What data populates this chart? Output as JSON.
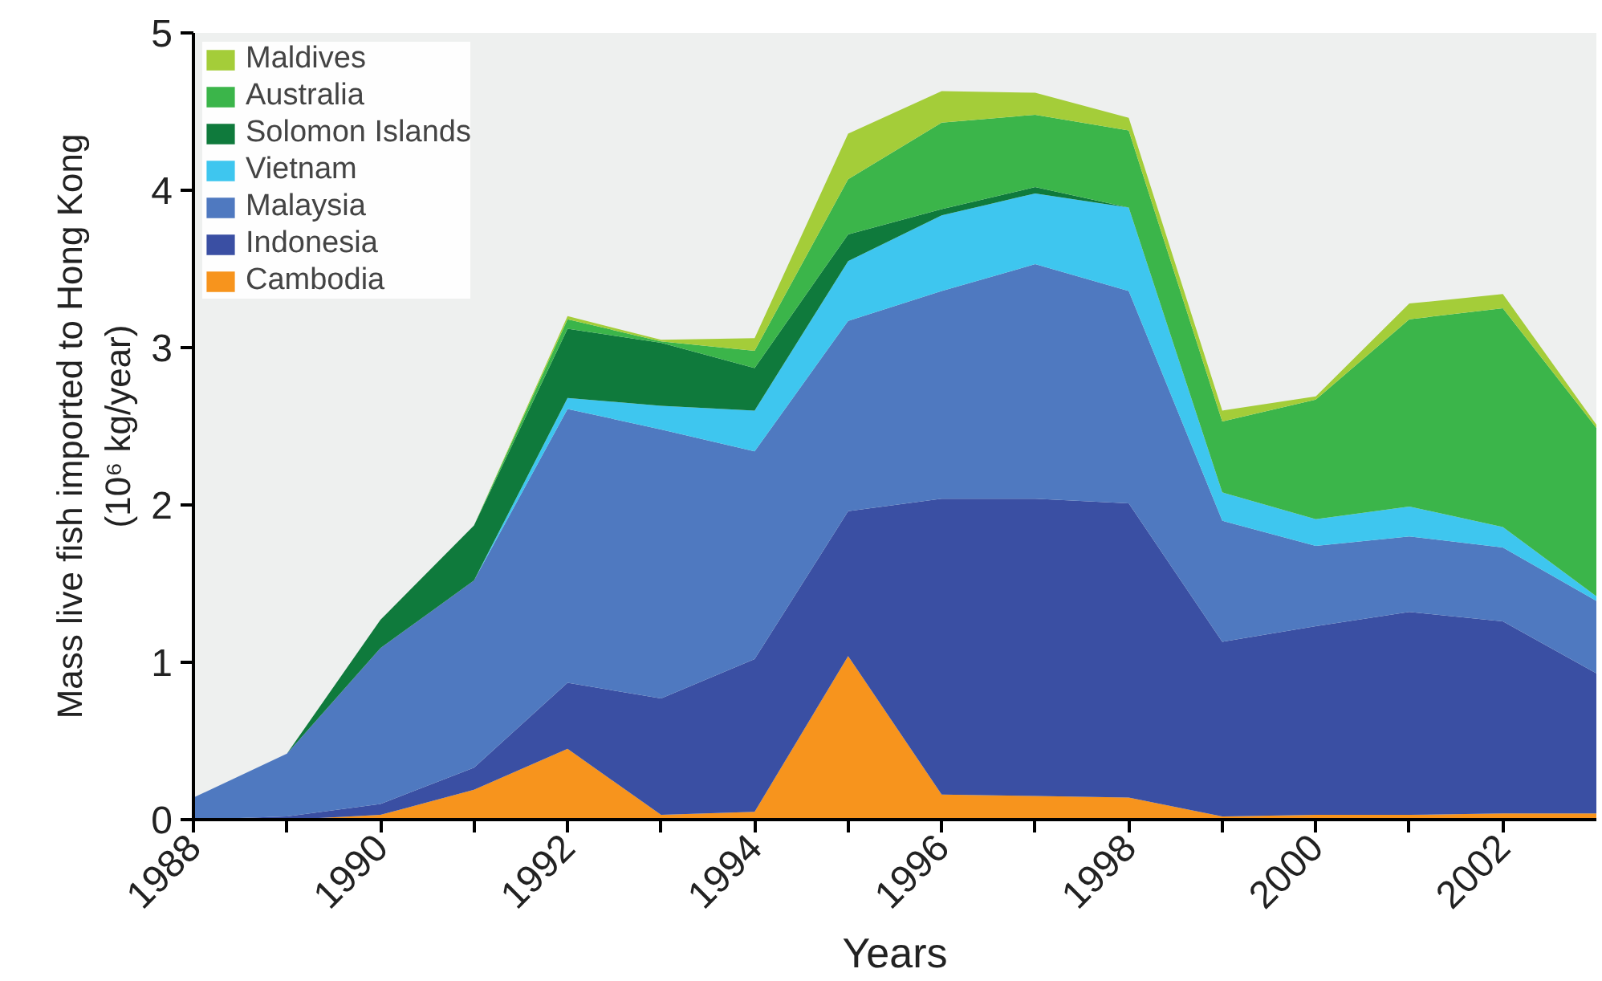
{
  "chart_data": {
    "type": "area",
    "stacked": true,
    "xlabel": "Years",
    "ylabel": "Mass live fish imported to Hong Kong\n(10⁶ kg/year)",
    "x": [
      1988,
      1989,
      1990,
      1991,
      1992,
      1993,
      1994,
      1995,
      1996,
      1997,
      1998,
      1999,
      2000,
      2001,
      2002,
      2003
    ],
    "series": [
      {
        "name": "Cambodia",
        "color": "#f7941d",
        "values": [
          0,
          0,
          0.03,
          0.19,
          0.45,
          0.03,
          0.05,
          1.04,
          0.16,
          0.15,
          0.14,
          0.02,
          0.03,
          0.03,
          0.04,
          0.04
        ]
      },
      {
        "name": "Indonesia",
        "color": "#3a4fa3",
        "values": [
          0,
          0.02,
          0.07,
          0.14,
          0.42,
          0.74,
          0.97,
          0.92,
          1.88,
          1.89,
          1.87,
          1.11,
          1.2,
          1.29,
          1.22,
          0.89
        ]
      },
      {
        "name": "Malaysia",
        "color": "#4f79c0",
        "values": [
          0.14,
          0.4,
          0.99,
          1.19,
          1.74,
          1.71,
          1.32,
          1.21,
          1.32,
          1.49,
          1.35,
          0.77,
          0.51,
          0.48,
          0.47,
          0.46
        ]
      },
      {
        "name": "Vietnam",
        "color": "#3ec6ef",
        "values": [
          0,
          0,
          0,
          0,
          0.07,
          0.15,
          0.26,
          0.38,
          0.48,
          0.45,
          0.53,
          0.18,
          0.17,
          0.19,
          0.13,
          0.03
        ]
      },
      {
        "name": "Solomon Islands",
        "color": "#0f7a3c",
        "values": [
          0,
          0,
          0.18,
          0.35,
          0.44,
          0.4,
          0.27,
          0.17,
          0.04,
          0.04,
          0,
          0,
          0,
          0,
          0,
          0
        ]
      },
      {
        "name": "Australia",
        "color": "#3bb54a",
        "values": [
          0,
          0,
          0,
          0,
          0.06,
          0.01,
          0.11,
          0.35,
          0.55,
          0.46,
          0.49,
          0.45,
          0.76,
          1.19,
          1.39,
          1.07
        ]
      },
      {
        "name": "Maldives",
        "color": "#a4cd39",
        "values": [
          0,
          0,
          0,
          0,
          0.02,
          0.01,
          0.08,
          0.29,
          0.2,
          0.14,
          0.08,
          0.07,
          0.02,
          0.1,
          0.09,
          0.02
        ]
      }
    ],
    "xlim": [
      1988,
      2003
    ],
    "xticks": [
      1988,
      {
        "value": 1989,
        "label": null
      },
      1990,
      {
        "value": 1991,
        "label": null
      },
      1992,
      {
        "value": 1993,
        "label": null
      },
      1994,
      {
        "value": 1995,
        "label": null
      },
      1996,
      {
        "value": 1997,
        "label": null
      },
      1998,
      {
        "value": 1999,
        "label": null
      },
      2000,
      {
        "value": 2001,
        "label": null
      },
      2002
    ],
    "ylim": [
      0,
      5
    ],
    "yticks": [
      0,
      1,
      2,
      3,
      4,
      5
    ],
    "grid": false,
    "legend": "top left"
  }
}
